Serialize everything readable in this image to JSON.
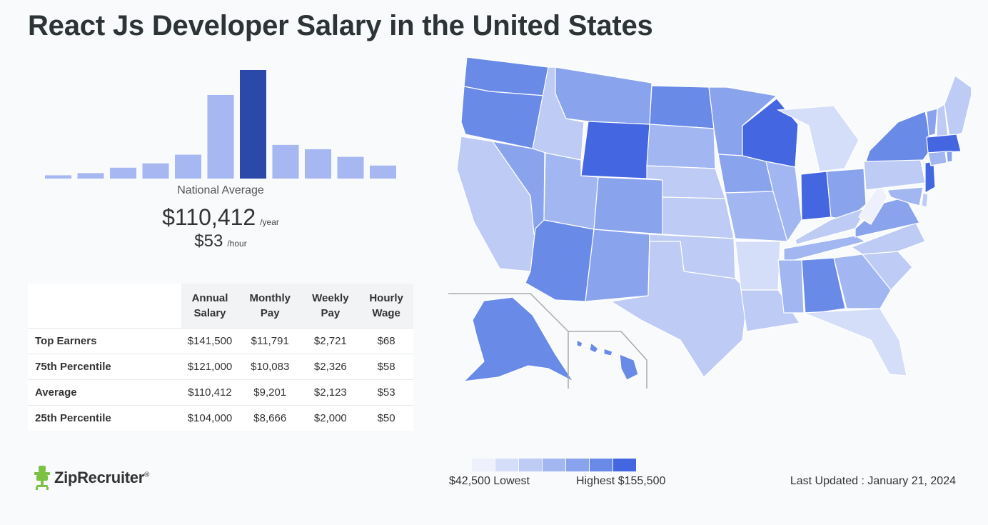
{
  "page": {
    "title": "React Js Developer Salary in the United States"
  },
  "national_average": {
    "label": "National Average",
    "annual": "$110,412",
    "annual_unit": "/year",
    "hourly": "$53",
    "hourly_unit": "/hour"
  },
  "table": {
    "headers": [
      "Annual\nSalary",
      "Monthly\nPay",
      "Weekly\nPay",
      "Hourly\nWage"
    ],
    "rows": [
      {
        "label": "Top Earners",
        "annual": "$141,500",
        "monthly": "$11,791",
        "weekly": "$2,721",
        "hourly": "$68"
      },
      {
        "label": "75th Percentile",
        "annual": "$121,000",
        "monthly": "$10,083",
        "weekly": "$2,326",
        "hourly": "$58"
      },
      {
        "label": "Average",
        "annual": "$110,412",
        "monthly": "$9,201",
        "weekly": "$2,123",
        "hourly": "$53"
      },
      {
        "label": "25th Percentile",
        "annual": "$104,000",
        "monthly": "$8,666",
        "weekly": "$2,000",
        "hourly": "$50"
      }
    ]
  },
  "legend": {
    "low_label": "$42,500 Lowest",
    "high_label": "Highest $155,500",
    "colors": [
      "#eef1fc",
      "#d5def8",
      "#bdcbf5",
      "#a2b6f1",
      "#8aa3ed",
      "#6a8ae8",
      "#4466e0"
    ]
  },
  "footer": {
    "updated": "Last Updated : January 21, 2024",
    "logo_text": "ZipRecruiter",
    "logo_mark": "®"
  },
  "chart_data": [
    {
      "type": "bar",
      "values": [
        3,
        5,
        10,
        14,
        22,
        77,
        100,
        31,
        27,
        20,
        12
      ],
      "highlight_index": 6,
      "colors": {
        "bar": "#a7b7f1",
        "highlight": "#2b49a8"
      },
      "ylim": [
        0,
        100
      ]
    },
    {
      "type": "heatmap",
      "title": "",
      "states": [
        {
          "name": "Washington",
          "level": 6
        },
        {
          "name": "Oregon",
          "level": 6
        },
        {
          "name": "California",
          "level": 3
        },
        {
          "name": "Nevada",
          "level": 5
        },
        {
          "name": "Idaho",
          "level": 3
        },
        {
          "name": "Montana",
          "level": 5
        },
        {
          "name": "Wyoming",
          "level": 7
        },
        {
          "name": "Utah",
          "level": 4
        },
        {
          "name": "Arizona",
          "level": 6
        },
        {
          "name": "Colorado",
          "level": 5
        },
        {
          "name": "New Mexico",
          "level": 5
        },
        {
          "name": "North Dakota",
          "level": 6
        },
        {
          "name": "South Dakota",
          "level": 4
        },
        {
          "name": "Nebraska",
          "level": 3
        },
        {
          "name": "Kansas",
          "level": 3
        },
        {
          "name": "Oklahoma",
          "level": 3
        },
        {
          "name": "Texas",
          "level": 3
        },
        {
          "name": "Minnesota",
          "level": 5
        },
        {
          "name": "Iowa",
          "level": 5
        },
        {
          "name": "Missouri",
          "level": 4
        },
        {
          "name": "Arkansas",
          "level": 2
        },
        {
          "name": "Louisiana",
          "level": 3
        },
        {
          "name": "Wisconsin",
          "level": 7
        },
        {
          "name": "Illinois",
          "level": 4
        },
        {
          "name": "Michigan",
          "level": 2
        },
        {
          "name": "Indiana",
          "level": 7
        },
        {
          "name": "Ohio",
          "level": 5
        },
        {
          "name": "Kentucky",
          "level": 3
        },
        {
          "name": "Tennessee",
          "level": 4
        },
        {
          "name": "Mississippi",
          "level": 4
        },
        {
          "name": "Alabama",
          "level": 6
        },
        {
          "name": "Georgia",
          "level": 4
        },
        {
          "name": "Florida",
          "level": 2
        },
        {
          "name": "South Carolina",
          "level": 3
        },
        {
          "name": "North Carolina",
          "level": 3
        },
        {
          "name": "Virginia",
          "level": 5
        },
        {
          "name": "West Virginia",
          "level": 1
        },
        {
          "name": "Pennsylvania",
          "level": 3
        },
        {
          "name": "New York",
          "level": 6
        },
        {
          "name": "New Jersey",
          "level": 7
        },
        {
          "name": "Delaware",
          "level": 3
        },
        {
          "name": "Maryland",
          "level": 4
        },
        {
          "name": "Vermont",
          "level": 5
        },
        {
          "name": "New Hampshire",
          "level": 3
        },
        {
          "name": "Maine",
          "level": 3
        },
        {
          "name": "Massachusetts",
          "level": 7
        },
        {
          "name": "Connecticut",
          "level": 4
        },
        {
          "name": "Rhode Island",
          "level": 5
        },
        {
          "name": "Alaska",
          "level": 6
        },
        {
          "name": "Hawaii",
          "level": 6
        }
      ]
    }
  ]
}
